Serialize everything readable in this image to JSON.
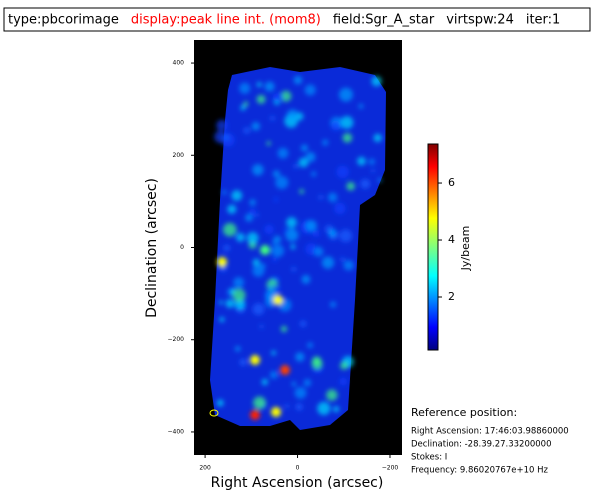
{
  "chart_data": {
    "type": "image",
    "header": [
      {
        "text": "type:pbcorimage",
        "color": "#000000"
      },
      {
        "text": "display:peak line int. (mom8)",
        "color": "#ff0000"
      },
      {
        "text": "field:Sgr_A_star",
        "color": "#000000"
      },
      {
        "text": "virtspw:24",
        "color": "#000000"
      },
      {
        "text": "iter:1",
        "color": "#000000"
      }
    ],
    "xlabel": "Right Ascension (arcsec)",
    "ylabel": "Declination (arcsec)",
    "xlim": [
      224,
      -226
    ],
    "xticks": [
      200,
      0,
      {
        "value": -200,
        "label": "−200"
      }
    ],
    "ylim": [
      -450,
      450
    ],
    "yticks": [
      400,
      200,
      0,
      {
        "value": -200,
        "label": "−200"
      },
      {
        "value": -400,
        "label": "−400"
      }
    ],
    "colorbar": {
      "label": "Jy/beam",
      "lim": [
        0.14,
        7.37
      ],
      "ticks": [
        2,
        4,
        6
      ]
    },
    "reference": {
      "title": "Reference position:",
      "lines": [
        "Right Ascension: 17:46:03.98860000",
        "Declination: -28.39.27.33200000",
        "Stokes: I",
        "Frequency: 9.86020767e+10 Hz"
      ]
    }
  }
}
